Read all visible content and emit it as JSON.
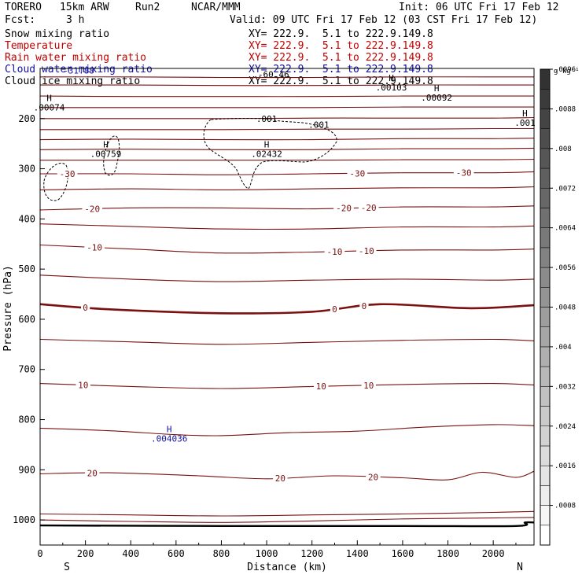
{
  "header": {
    "model": "TORERO",
    "resolution": "15km ARW",
    "run": "Run2",
    "org": "NCAR/MMM",
    "init": "Init: 06 UTC Fri 17 Feb 12",
    "fcst_label": "Fcst:",
    "fcst_value": "3 h",
    "valid": "Valid: 09 UTC Fri 17 Feb 12 (03 CST Fri 17 Feb 12)"
  },
  "legend": [
    {
      "name": "Snow mixing ratio",
      "xy": "XY= 222.9.  5.1 to 222.9.149.8",
      "color": "#000000"
    },
    {
      "name": "Temperature",
      "xy": "XY= 222.9.  5.1 to 222.9.149.8",
      "color": "#c00000"
    },
    {
      "name": "Rain water mixing ratio",
      "xy": "XY= 222.9.  5.1 to 222.9.149.8",
      "color": "#c00000"
    },
    {
      "name": "Cloud water mixing ratio",
      "xy": "XY= 222.9.  5.1 to 222.9.149.8",
      "color": "#1010a0"
    },
    {
      "name": "Cloud ice mixing ratio",
      "xy": "XY= 222.9.  5.1 to 222.9.149.8",
      "color": "#000000"
    }
  ],
  "chart_data": {
    "type": "cross-section",
    "xlabel": "Distance (km)",
    "ylabel": "Pressure (hPa)",
    "xlim": [
      0,
      2180
    ],
    "ylim": [
      1050,
      100
    ],
    "x_ticks": [
      0,
      200,
      400,
      600,
      800,
      1000,
      1200,
      1400,
      1600,
      1800,
      2000
    ],
    "y_ticks": [
      200,
      300,
      400,
      500,
      600,
      700,
      800,
      900,
      1000
    ],
    "x_end_labels": {
      "left": "S",
      "right": "N"
    },
    "colorbar": {
      "unit": "g kg⁻¹",
      "ticks": [
        ".0008",
        ".0016",
        ".0024",
        ".0032",
        ".004",
        ".0048",
        ".0056",
        ".0064",
        ".0072",
        ".008",
        ".0088",
        ".0096"
      ],
      "levels": 24
    },
    "temperature_contours": {
      "color": "#7a1010",
      "interval_c": 5,
      "levels": [
        {
          "t": 20,
          "p": [
            [
              0,
              1000
            ],
            [
              400,
              1003
            ],
            [
              800,
              1005
            ],
            [
              1200,
              1002
            ],
            [
              1600,
              998
            ],
            [
              2000,
              996
            ],
            [
              2180,
              995
            ]
          ]
        },
        {
          "t": 25,
          "p": [
            [
              0,
              988
            ],
            [
              400,
              990
            ],
            [
              800,
              992
            ],
            [
              1200,
              990
            ],
            [
              1600,
              988
            ],
            [
              2000,
              985
            ],
            [
              2180,
              983
            ]
          ]
        },
        {
          "t": 20,
          "p": [
            [
              0,
              908
            ],
            [
              300,
              906
            ],
            [
              700,
              912
            ],
            [
              1000,
              918
            ],
            [
              1300,
              912
            ],
            [
              1600,
              916
            ],
            [
              1800,
              920
            ],
            [
              1950,
              905
            ],
            [
              2100,
              915
            ],
            [
              2180,
              903
            ]
          ],
          "label": "20",
          "lx": [
            230,
            1060,
            1470
          ]
        },
        {
          "t": 15,
          "p": [
            [
              0,
              817
            ],
            [
              300,
              822
            ],
            [
              600,
              830
            ],
            [
              800,
              832
            ],
            [
              1100,
              826
            ],
            [
              1400,
              823
            ],
            [
              1700,
              815
            ],
            [
              2000,
              810
            ],
            [
              2180,
              812
            ]
          ]
        },
        {
          "t": 10,
          "p": [
            [
              0,
              728
            ],
            [
              400,
              734
            ],
            [
              800,
              738
            ],
            [
              1200,
              734
            ],
            [
              1600,
              730
            ],
            [
              2000,
              728
            ],
            [
              2180,
              731
            ]
          ],
          "label": "10",
          "lx": [
            190,
            1240,
            1450
          ]
        },
        {
          "t": 5,
          "p": [
            [
              0,
              640
            ],
            [
              400,
              645
            ],
            [
              800,
              650
            ],
            [
              1200,
              646
            ],
            [
              1600,
              642
            ],
            [
              2000,
              640
            ],
            [
              2180,
              643
            ]
          ]
        },
        {
          "t": 0,
          "p": [
            [
              0,
              570
            ],
            [
              300,
              580
            ],
            [
              800,
              588
            ],
            [
              1200,
              585
            ],
            [
              1500,
              570
            ],
            [
              1900,
              578
            ],
            [
              2180,
              572
            ]
          ],
          "label": "0",
          "lx": [
            200,
            1300,
            1430
          ],
          "bold": true
        },
        {
          "t": -5,
          "p": [
            [
              0,
              512
            ],
            [
              400,
              520
            ],
            [
              800,
              525
            ],
            [
              1200,
              522
            ],
            [
              1600,
              520
            ],
            [
              2000,
              522
            ],
            [
              2180,
              520
            ]
          ]
        },
        {
          "t": -10,
          "p": [
            [
              0,
              452
            ],
            [
              400,
              460
            ],
            [
              800,
              468
            ],
            [
              1200,
              466
            ],
            [
              1600,
              462
            ],
            [
              2000,
              462
            ],
            [
              2180,
              460
            ]
          ],
          "label": "-10",
          "lx": [
            240,
            1300,
            1440
          ]
        },
        {
          "t": -15,
          "p": [
            [
              0,
              410
            ],
            [
              400,
              415
            ],
            [
              800,
              420
            ],
            [
              1200,
              420
            ],
            [
              1600,
              416
            ],
            [
              2000,
              416
            ],
            [
              2180,
              414
            ]
          ]
        },
        {
          "t": -20,
          "p": [
            [
              0,
              382
            ],
            [
              400,
              378
            ],
            [
              800,
              378
            ],
            [
              1200,
              380
            ],
            [
              1600,
              376
            ],
            [
              2000,
              376
            ],
            [
              2180,
              374
            ]
          ],
          "label": "-20",
          "lx": [
            230,
            1340,
            1450
          ]
        },
        {
          "t": -25,
          "p": [
            [
              0,
              342
            ],
            [
              400,
              340
            ],
            [
              800,
              342
            ],
            [
              1200,
              340
            ],
            [
              1600,
              338
            ],
            [
              2000,
              338
            ],
            [
              2180,
              336
            ]
          ]
        },
        {
          "t": -30,
          "p": [
            [
              0,
              310
            ],
            [
              400,
              310
            ],
            [
              800,
              312
            ],
            [
              1200,
              310
            ],
            [
              1600,
              308
            ],
            [
              2000,
              308
            ],
            [
              2180,
              306
            ]
          ],
          "label": "-30",
          "lx": [
            120,
            1400,
            1870
          ]
        },
        {
          "t": -35,
          "p": [
            [
              0,
              283
            ],
            [
              400,
              283
            ],
            [
              800,
              283
            ],
            [
              1200,
              283
            ],
            [
              1600,
              282
            ],
            [
              2000,
              282
            ],
            [
              2180,
              281
            ]
          ]
        },
        {
          "t": -40,
          "p": [
            [
              0,
              262
            ],
            [
              400,
              261
            ],
            [
              800,
              262
            ],
            [
              1200,
              262
            ],
            [
              1600,
              260
            ],
            [
              2000,
              260
            ],
            [
              2180,
              259
            ]
          ]
        },
        {
          "t": -45,
          "p": [
            [
              0,
              242
            ],
            [
              400,
              241
            ],
            [
              800,
              242
            ],
            [
              1200,
              242
            ],
            [
              1600,
              240
            ],
            [
              2000,
              240
            ],
            [
              2180,
              239
            ]
          ]
        },
        {
          "t": -50,
          "p": [
            [
              0,
              222
            ],
            [
              400,
              222
            ],
            [
              800,
              222
            ],
            [
              1200,
              221
            ],
            [
              1600,
              221
            ],
            [
              2000,
              220
            ],
            [
              2180,
              220
            ]
          ]
        },
        {
          "t": -55,
          "p": [
            [
              0,
              200
            ],
            [
              400,
              200
            ],
            [
              800,
              200
            ],
            [
              1200,
              199
            ],
            [
              1600,
              199
            ],
            [
              2000,
              199
            ],
            [
              2180,
              198
            ]
          ]
        },
        {
          "t": -60,
          "p": [
            [
              0,
              178
            ],
            [
              400,
              178
            ],
            [
              800,
              178
            ],
            [
              1200,
              178
            ],
            [
              1600,
              177
            ],
            [
              2000,
              177
            ],
            [
              2180,
              177
            ]
          ]
        },
        {
          "t": -65,
          "p": [
            [
              0,
              155
            ],
            [
              400,
              156
            ],
            [
              800,
              156
            ],
            [
              1200,
              156
            ],
            [
              1600,
              155
            ],
            [
              2000,
              155
            ],
            [
              2180,
              155
            ]
          ]
        },
        {
          "t": -70,
          "p": [
            [
              0,
              133
            ],
            [
              400,
              133
            ],
            [
              800,
              134
            ],
            [
              1200,
              134
            ],
            [
              1600,
              133
            ],
            [
              2000,
              133
            ],
            [
              2180,
              133
            ]
          ]
        },
        {
          "t": -75,
          "p": [
            [
              0,
              117
            ],
            [
              400,
              117
            ],
            [
              800,
              118
            ],
            [
              1200,
              118
            ],
            [
              1600,
              117
            ],
            [
              2000,
              117
            ],
            [
              2180,
              117
            ]
          ]
        }
      ]
    },
    "ground": {
      "p": [
        [
          0,
          1011
        ],
        [
          800,
          1012
        ],
        [
          1600,
          1012
        ],
        [
          2100,
          1012
        ],
        [
          2140,
          1005
        ],
        [
          2180,
          1005
        ]
      ]
    },
    "extrema": [
      {
        "label": "H",
        "value": ".00074",
        "x": 40,
        "p": 170,
        "color": "#000000"
      },
      {
        "label": "H",
        "value": ".00759",
        "x": 290,
        "p": 262,
        "color": "#000000"
      },
      {
        "label": "H",
        "value": ".02432",
        "x": 1000,
        "p": 262,
        "color": "#000000"
      },
      {
        "label": "H",
        "value": ".00103",
        "x": 1550,
        "p": 130,
        "color": "#000000"
      },
      {
        "label": "H",
        "value": ".00092",
        "x": 1750,
        "p": 150,
        "color": "#000000"
      },
      {
        "label": "H",
        "value": ".001",
        "x": 2140,
        "p": 200,
        "color": "#000000"
      },
      {
        "label": "H",
        "value": ".004036",
        "x": 570,
        "p": 830,
        "color": "#1010a0"
      }
    ],
    "ice_contour_labels": [
      {
        "value": ".001",
        "x": 1000,
        "p": 200
      },
      {
        "value": ".001",
        "x": 1230,
        "p": 212
      }
    ],
    "overlap_labels": [
      {
        "value": "-31.88",
        "x": 170,
        "p": 110,
        "color": "#1010a0"
      },
      {
        "value": "-60.46",
        "x": 1030,
        "p": 118,
        "color": "#000000"
      }
    ]
  }
}
